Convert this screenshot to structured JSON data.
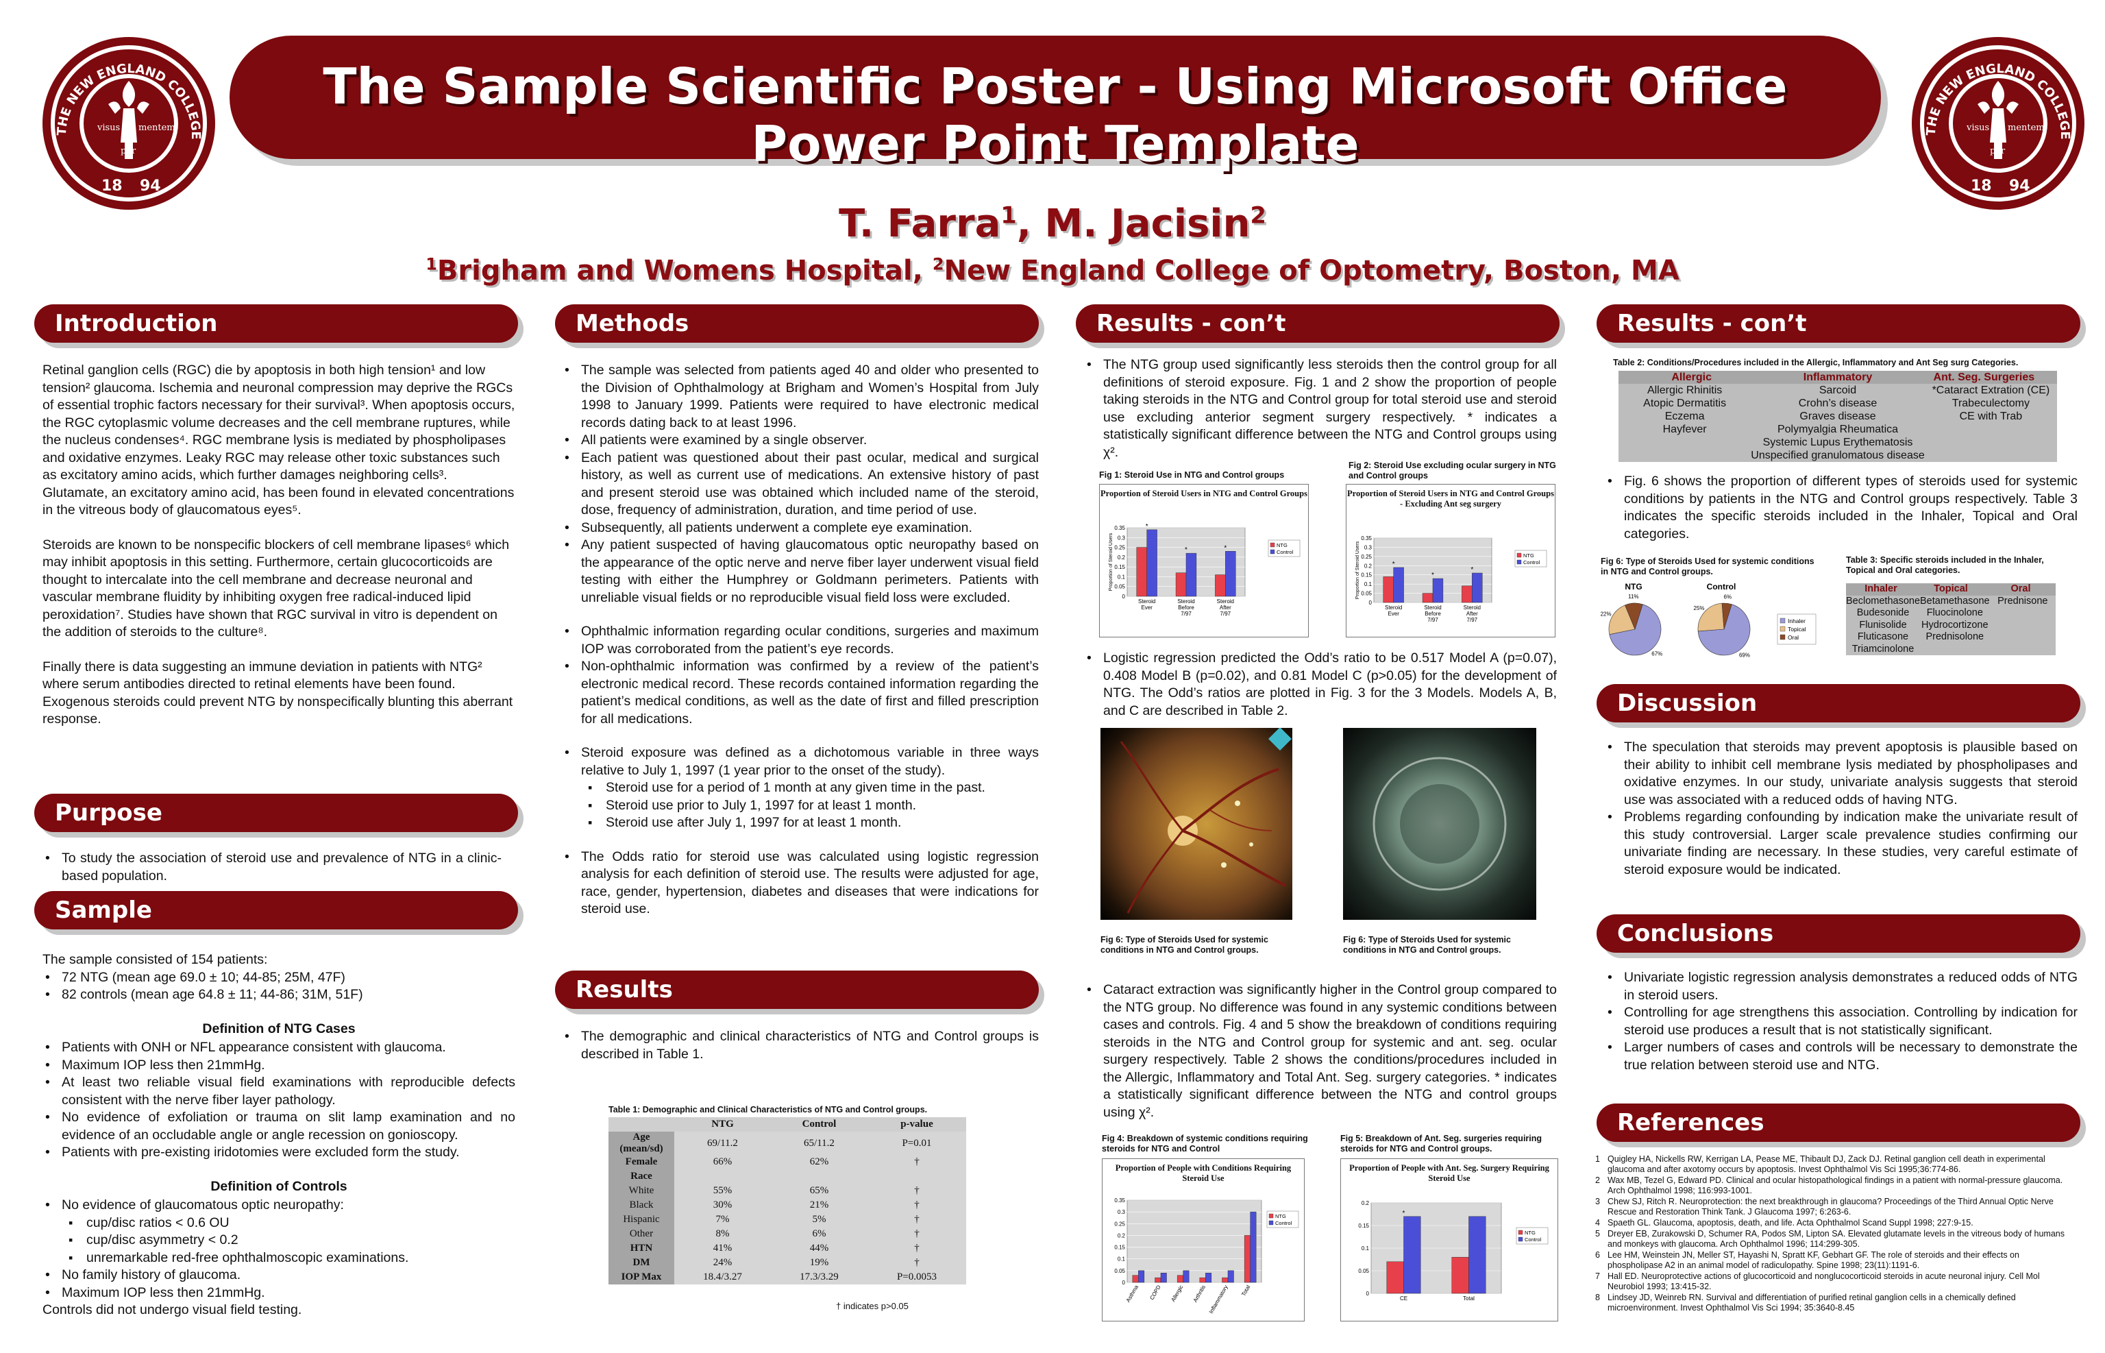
{
  "header": {
    "title": "The Sample Scientific Poster - Using Microsoft Office\nPower Point Template",
    "authors_prefix": "T. Farra",
    "authors_sup1": "1",
    "authors_mid": ", M. Jacisin",
    "authors_sup2": "2",
    "affil_sup1": "1",
    "affil_part1": "Brigham and Womens Hospital, ",
    "affil_sup2": "2",
    "affil_part2": "New England College of Optometry, Boston, MA",
    "seal_top": "THE NEW ENGLAND COLLEGE OF OPTOMETRY",
    "seal_left": "visus",
    "seal_mid": "per",
    "seal_right": "mentem",
    "seal_year_a": "18",
    "seal_year_b": "94"
  },
  "introduction": {
    "heading": "Introduction",
    "p1": "Retinal ganglion cells (RGC) die by apoptosis in both high tension¹ and low tension² glaucoma. Ischemia and neuronal compression may deprive the RGCs of essential trophic factors necessary for their survival³. When apoptosis occurs, the RGC cytoplasmic volume decreases and the cell membrane ruptures, while the nucleus condenses⁴. RGC membrane lysis is mediated by phospholipases and oxidative enzymes. Leaky RGC may release other toxic substances such as excitatory amino acids, which further damages neighboring cells³. Glutamate, an excitatory amino acid, has been found in elevated concentrations in the vitreous body of glaucomatous eyes⁵.",
    "p2": "Steroids are known to be nonspecific blockers of cell membrane lipases⁶ which may inhibit apoptosis in this setting.  Furthermore, certain glucocorticoids are thought to intercalate into the cell membrane and decrease neuronal and vascular membrane fluidity by inhibiting oxygen free radical-induced lipid peroxidation⁷. Studies have shown that RGC survival in vitro is dependent on the addition of steroids to the culture⁸.",
    "p3": "Finally there is data suggesting an immune deviation in patients with NTG² where serum antibodies directed to retinal elements have been found. Exogenous steroids could prevent NTG by nonspecifically blunting this aberrant response."
  },
  "purpose": {
    "heading": "Purpose",
    "items": [
      "To study the association of steroid use and prevalence of NTG in a clinic-based population."
    ]
  },
  "sample": {
    "heading": "Sample",
    "intro": "The sample consisted of 154 patients:",
    "items": [
      "72 NTG (mean age 69.0  ± 10; 44-85; 25M, 47F)",
      "82 controls (mean age 64.8  ± 11; 44-86; 31M, 51F)"
    ],
    "cases_heading": "Definition of NTG Cases",
    "cases": [
      "Patients with ONH or NFL appearance consistent with glaucoma.",
      "Maximum IOP less then 21mmHg.",
      "At least two reliable visual field examinations with reproducible defects consistent with the nerve fiber layer pathology.",
      "No evidence of exfoliation or trauma on slit lamp examination and no evidence of an occludable angle or angle recession on gonioscopy.",
      "Patients with pre-existing iridotomies were excluded form the study."
    ],
    "controls_heading": "Definition of Controls",
    "controls_lead": "No evidence of glaucomatous optic neuropathy:",
    "controls_sub": [
      "cup/disc ratios < 0.6  OU",
      "cup/disc asymmetry < 0.2",
      "unremarkable red-free ophthalmoscopic examinations."
    ],
    "controls_rest": [
      "No family history of glaucoma.",
      "Maximum IOP less then 21mmHg."
    ],
    "closing": "Controls did not undergo visual field testing."
  },
  "methods": {
    "heading": "Methods",
    "group1": [
      "The sample was selected from patients aged 40 and older who presented to the Division of Ophthalmology at Brigham and Women’s Hospital from July 1998 to January 1999. Patients were required to have electronic medical records dating back to at least 1996.",
      "All patients were examined by a single observer.",
      "Each patient was questioned about their past ocular, medical and surgical history, as well as current use of medications. An extensive history of past and present steroid use was obtained which included name of the steroid, dose, frequency of administration, duration, and time period of use.",
      "Subsequently, all patients underwent a complete eye examination.",
      "Any patient suspected of having glaucomatous optic neuropathy based on the appearance of the optic nerve and nerve fiber layer underwent visual field testing with either the Humphrey or Goldmann perimeters. Patients with unreliable visual fields or no reproducible visual field loss were excluded."
    ],
    "group2": [
      "Ophthalmic information regarding ocular conditions, surgeries and maximum IOP was corroborated from the patient’s eye records.",
      "Non-ophthalmic information was confirmed by a review of the patient’s electronic medical record. These records contained information regarding the patient’s medical conditions, as well as the date of first and filled prescription for all medications."
    ],
    "group3_lead": "Steroid exposure was defined as a dichotomous variable in three ways relative to July 1, 1997 (1 year prior to the onset of the study).",
    "group3_sub": [
      "Steroid use for a period of 1 month at any given time in the past.",
      "Steroid use prior to July 1, 1997 for at least 1 month.",
      "Steroid use after July 1, 1997 for at least 1 month."
    ],
    "group4": [
      "The Odds ratio for steroid use was calculated using logistic regression analysis for each definition of steroid use. The results were adjusted for age, race, gender, hypertension, diabetes and diseases that were indications for steroid use."
    ]
  },
  "results": {
    "heading": "Results",
    "items": [
      "The demographic and clinical characteristics of NTG and Control groups is described in Table 1."
    ],
    "table1_caption": "Table 1: Demographic and Clinical Characteristics of NTG and Control groups.",
    "table1_header": [
      "",
      "NTG",
      "Control",
      "p-value"
    ],
    "table1_rows": [
      [
        "Age (mean/sd)",
        "69/11.2",
        "65/11.2",
        "P=0.01"
      ],
      [
        "Female",
        "66%",
        "62%",
        "†"
      ],
      [
        "Race",
        "",
        "",
        ""
      ],
      [
        "White",
        "55%",
        "65%",
        "†"
      ],
      [
        "Black",
        "30%",
        "21%",
        "†"
      ],
      [
        "Hispanic",
        "7%",
        "5%",
        "†"
      ],
      [
        "Other",
        "8%",
        "6%",
        "†"
      ],
      [
        "HTN",
        "41%",
        "44%",
        "†"
      ],
      [
        "DM",
        "24%",
        "19%",
        "†"
      ],
      [
        "IOP Max",
        "18.4/3.27",
        "17.3/3.29",
        "P=0.0053"
      ]
    ],
    "table1_note": "† indicates p>0.05"
  },
  "results_cont1": {
    "heading": "Results - con’t",
    "p1": "The NTG group used significantly less steroids then the control group for all definitions of steroid exposure. Fig. 1 and 2 show the proportion of people taking steroids in the NTG and Control group for total steroid use and steroid use excluding anterior segment surgery respectively. * indicates a statistically significant difference between the NTG and Control groups using χ².",
    "fig1_caption": "Fig 1: Steroid Use in NTG and Control groups",
    "fig2_caption": "Fig 2: Steroid Use excluding ocular surgery in NTG and Control groups",
    "p2": "Logistic regression predicted the Odd’s ratio to be 0.517 Model A (p=0.07), 0.408 Model B (p=0.02), and 0.81 Model C (p>0.05) for the development of NTG. The Odd’s ratios are plotted in Fig. 3 for the 3 Models.  Models A, B, and C are described in Table 2.",
    "photo1_caption": "Fig 6: Type of Steroids Used for systemic conditions in NTG and Control groups.",
    "photo2_caption": "Fig 6: Type of Steroids Used for systemic conditions in NTG and Control groups.",
    "p3": "Cataract extraction was significantly higher in the Control group compared to the NTG group. No difference was found in any systemic conditions between cases and controls. Fig. 4 and 5 show the breakdown of conditions requiring steroids in the NTG and Control group for systemic and ant. seg. ocular surgery respectively. Table 2 shows the conditions/procedures included in the Allergic, Inflammatory and Total Ant. Seg. surgery categories. * indicates a statistically significant difference between the NTG and control groups using χ².",
    "fig4_caption": "Fig 4: Breakdown of systemic conditions requiring steroids for NTG and Control",
    "fig5_caption": "Fig 5: Breakdown of Ant. Seg. surgeries requiring steroids for NTG and Control groups."
  },
  "results_cont2": {
    "heading": "Results - con’t",
    "table2_caption": "Table 2: Conditions/Procedures included in the Allergic, Inflammatory and Ant Seg surg Categories.",
    "table2_headers": [
      "Allergic",
      "Inflammatory",
      "Ant. Seg. Surgeries"
    ],
    "table2_cols": [
      [
        "Allergic Rhinitis",
        "Atopic Dermatitis",
        "Eczema",
        "Hayfever"
      ],
      [
        "Sarcoid",
        "Crohn’s disease",
        "Graves disease",
        "Polymyalgia Rheumatica",
        "Systemic Lupus Erythematosis",
        "Unspecified granulomatous disease"
      ],
      [
        "*Cataract Extration (CE)",
        "Trabeculectomy",
        "CE with Trab"
      ]
    ],
    "p1": "Fig. 6 shows the proportion of different types of steroids used for systemic conditions by patients in the NTG and Control groups respectively. Table 3 indicates the specific steroids included in the Inhaler, Topical and Oral categories.",
    "fig6_caption": "Fig 6: Type of Steroids Used for systemic conditions in NTG and Control groups.",
    "table3_caption": "Table 3: Specific steroids included in the Inhaler, Topical and Oral categories.",
    "table3_headers": [
      "Inhaler",
      "Topical",
      "Oral"
    ],
    "table3_cols": [
      [
        "Beclomethasone",
        "Budesonide",
        "Flunisolide",
        "Fluticasone",
        "Triamcinolone"
      ],
      [
        "Betamethasone",
        "Fluocinolone",
        "Hydrocortizone",
        "Prednisolone"
      ],
      [
        "Prednisone"
      ]
    ]
  },
  "discussion": {
    "heading": "Discussion",
    "items": [
      "The speculation that steroids may prevent apoptosis is plausible based on their ability to inhibit cell membrane lysis mediated by phospholipases and oxidative enzymes. In our study, univariate analysis suggests that steroid use was associated with a reduced odds of having NTG.",
      "Problems regarding confounding by indication make the univariate result of this study controversial. Larger scale prevalence studies confirming our univariate finding are necessary. In these studies, very careful estimate of steroid exposure would be indicated."
    ]
  },
  "conclusions": {
    "heading": "Conclusions",
    "items": [
      "Univariate logistic regression analysis demonstrates a reduced odds of NTG in steroid users.",
      "Controlling for age strengthens this association. Controlling by indication for steroid use produces a result that is not statistically significant.",
      "Larger numbers of cases and controls will be necessary to demonstrate the true relation between steroid use and NTG."
    ]
  },
  "references": {
    "heading": "References",
    "items": [
      "Quigley HA, Nickells RW, Kerrigan LA, Pease ME, Thibault DJ, Zack DJ. Retinal ganglion cell death in experimental glaucoma and after axotomy occurs by apoptosis. Invest Ophthalmol Vis Sci 1995;36:774-86.",
      "Wax MB, Tezel G, Edward PD. Clinical and ocular histopathological findings in a patient with normal-pressure glaucoma. Arch Ophthalmol 1998; 116:993-1001.",
      "Chew SJ, Ritch R. Neuroprotection: the next breakthrough in glaucoma? Proceedings of the Third Annual Optic Nerve Rescue and Restoration Think Tank. J Glaucoma 1997; 6:263-6.",
      "Spaeth GL. Glaucoma, apoptosis, death, and life. Acta Ophthalmol Scand Suppl 1998; 227:9-15.",
      "Dreyer EB, Zurakowski D, Schumer RA, Podos SM, Lipton SA. Elevated glutamate levels in the vitreous body of humans and monkeys with glaucoma. Arch Ophthalmol 1996; 114:299-305.",
      "Lee HM, Weinstein JN, Meller ST, Hayashi N, Spratt KF, Gebhart GF. The role of steroids and their effects on phospholipase A2 in an animal model of radiculopathy. Spine 1998; 23(11):1191-6.",
      "Hall ED. Neuroprotective actions of glucocorticoid and nonglucocorticoid steroids in acute neuronal injury. Cell Mol Neurobiol 1993; 13:415-32.",
      "Lindsey JD, Weinreb RN. Survival and differentiation of purified retinal ganglion cells in a chemically defined microenvironment. Invest Ophthalmol Vis Sci 1994; 35:3640-8.45"
    ]
  },
  "chart_data": [
    {
      "type": "bar",
      "title": "Proportion of Steroid Users in NTG and Control Groups",
      "ylabel": "Proportion of Steroid Users",
      "categories": [
        "Steroid Ever",
        "Steroid Before 7/97",
        "Steroid After 7/97"
      ],
      "series": [
        {
          "name": "NTG",
          "values": [
            0.25,
            0.12,
            0.11
          ]
        },
        {
          "name": "Control",
          "values": [
            0.34,
            0.22,
            0.23
          ]
        }
      ],
      "ylim": [
        0,
        0.35
      ],
      "yticks": [
        "0",
        "0.05",
        "0.1",
        "0.15",
        "0.2",
        "0.25",
        "0.3",
        "0.35"
      ],
      "significant": [
        "*",
        "*",
        "*"
      ],
      "colors": {
        "NTG": "#e8404a",
        "Control": "#4b4fd8"
      }
    },
    {
      "type": "bar",
      "title": "Proportion of Steroid Users in NTG and Control Groups - Excluding Ant seg surgery",
      "ylabel": "Proportion of Steroid Users",
      "categories": [
        "Steroid Ever",
        "Steroid Before 7/97",
        "Steroid After 7/97"
      ],
      "series": [
        {
          "name": "NTG",
          "values": [
            0.14,
            0.05,
            0.09
          ]
        },
        {
          "name": "Control",
          "values": [
            0.19,
            0.13,
            0.16
          ]
        }
      ],
      "ylim": [
        0,
        0.35
      ],
      "yticks": [
        "0",
        "0.05",
        "0.1",
        "0.15",
        "0.2",
        "0.25",
        "0.3",
        "0.35"
      ],
      "significant": [
        "*",
        "*",
        "*"
      ],
      "colors": {
        "NTG": "#e8404a",
        "Control": "#4b4fd8"
      }
    },
    {
      "type": "bar",
      "title": "Proportion of People with Conditions Requiring Steroid Use",
      "categories": [
        "Asthma",
        "COPD",
        "Allergic",
        "Arthritis",
        "Inflammatory",
        "Total"
      ],
      "series": [
        {
          "name": "NTG",
          "values": [
            0.03,
            0.02,
            0.03,
            0.02,
            0.02,
            0.2
          ]
        },
        {
          "name": "Control",
          "values": [
            0.05,
            0.04,
            0.05,
            0.04,
            0.05,
            0.3
          ]
        }
      ],
      "ylim": [
        0,
        0.35
      ],
      "yticks": [
        "0",
        "0.05",
        "0.1",
        "0.15",
        "0.2",
        "0.25",
        "0.3",
        "0.35"
      ],
      "colors": {
        "NTG": "#e8404a",
        "Control": "#4b4fd8"
      }
    },
    {
      "type": "bar",
      "title": "Proportion of People with Ant. Seg. Surgery Requiring Steroid Use",
      "categories": [
        "CE",
        "Total"
      ],
      "series": [
        {
          "name": "NTG",
          "values": [
            0.07,
            0.08
          ]
        },
        {
          "name": "Control",
          "values": [
            0.17,
            0.17
          ]
        }
      ],
      "ylim": [
        0,
        0.2
      ],
      "yticks": [
        "0",
        "0.05",
        "0.1",
        "0.15",
        "0.2"
      ],
      "significant": [
        "*",
        ""
      ],
      "colors": {
        "NTG": "#e8404a",
        "Control": "#4b4fd8"
      }
    },
    {
      "type": "pie",
      "title": "NTG",
      "categories": [
        "Inhaler",
        "Topical",
        "Oral"
      ],
      "values": [
        0.67,
        0.22,
        0.11
      ],
      "labels": [
        "67%",
        "22%",
        "11%"
      ],
      "colors": [
        "#9a9ad6",
        "#e8c089",
        "#8b4a26"
      ]
    },
    {
      "type": "pie",
      "title": "Control",
      "categories": [
        "Inhaler",
        "Topical",
        "Oral"
      ],
      "values": [
        0.69,
        0.25,
        0.06
      ],
      "labels": [
        "69%",
        "25%",
        "6%"
      ],
      "legend": [
        "Inhaler",
        "Topical",
        "Oral"
      ],
      "colors": [
        "#9a9ad6",
        "#e8c089",
        "#8b4a26"
      ]
    }
  ]
}
